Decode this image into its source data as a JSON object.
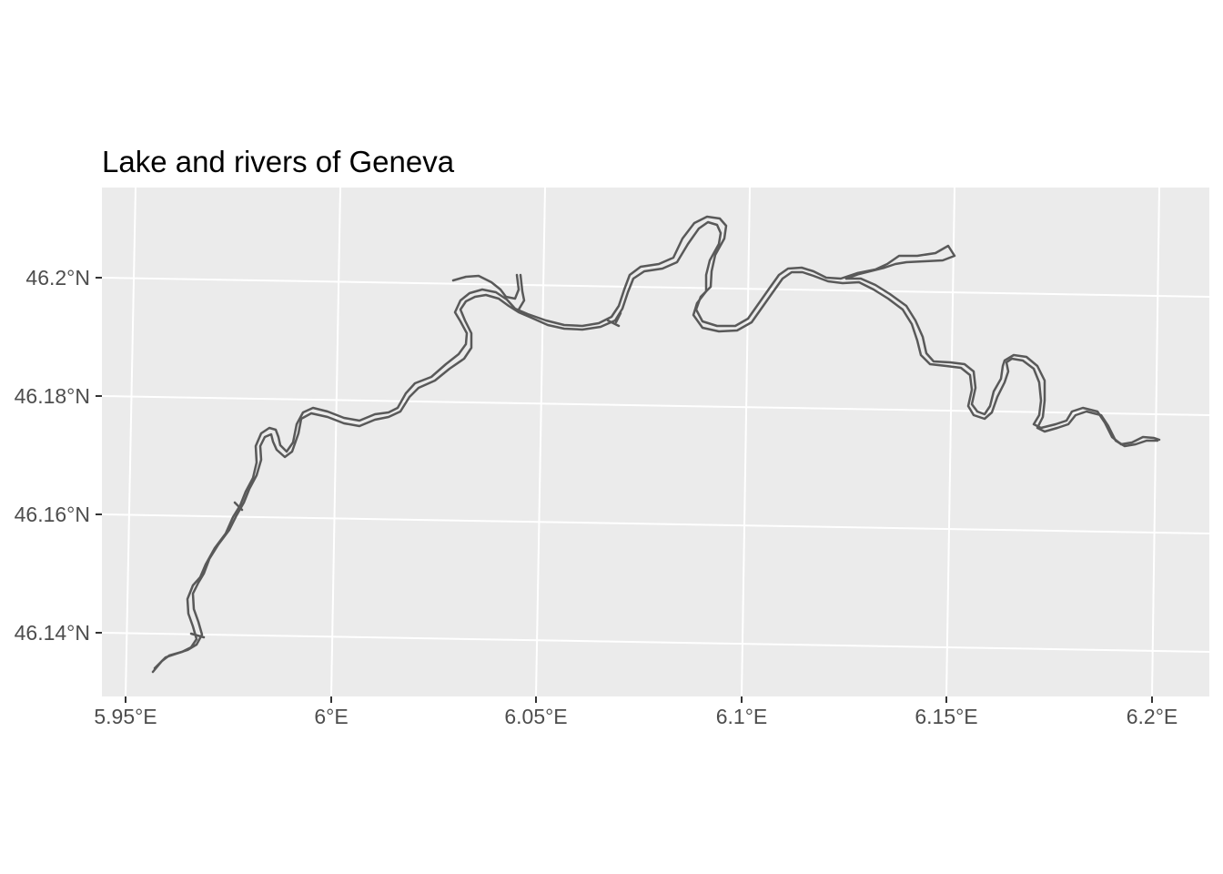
{
  "map": {
    "title": "Lake and rivers of Geneva",
    "x_ticks": [
      "5.95°E",
      "6°E",
      "6.05°E",
      "6.1°E",
      "6.15°E",
      "6.2°E"
    ],
    "y_ticks": [
      "46.2°N",
      "46.18°N",
      "46.16°N",
      "46.14°N"
    ],
    "colors": {
      "panel_background": "#ebebeb",
      "grid": "#ffffff",
      "river_outline": "#595959",
      "tick_text": "#4d4d4d"
    },
    "features": [
      {
        "name": "river",
        "kind": "outline"
      }
    ]
  }
}
